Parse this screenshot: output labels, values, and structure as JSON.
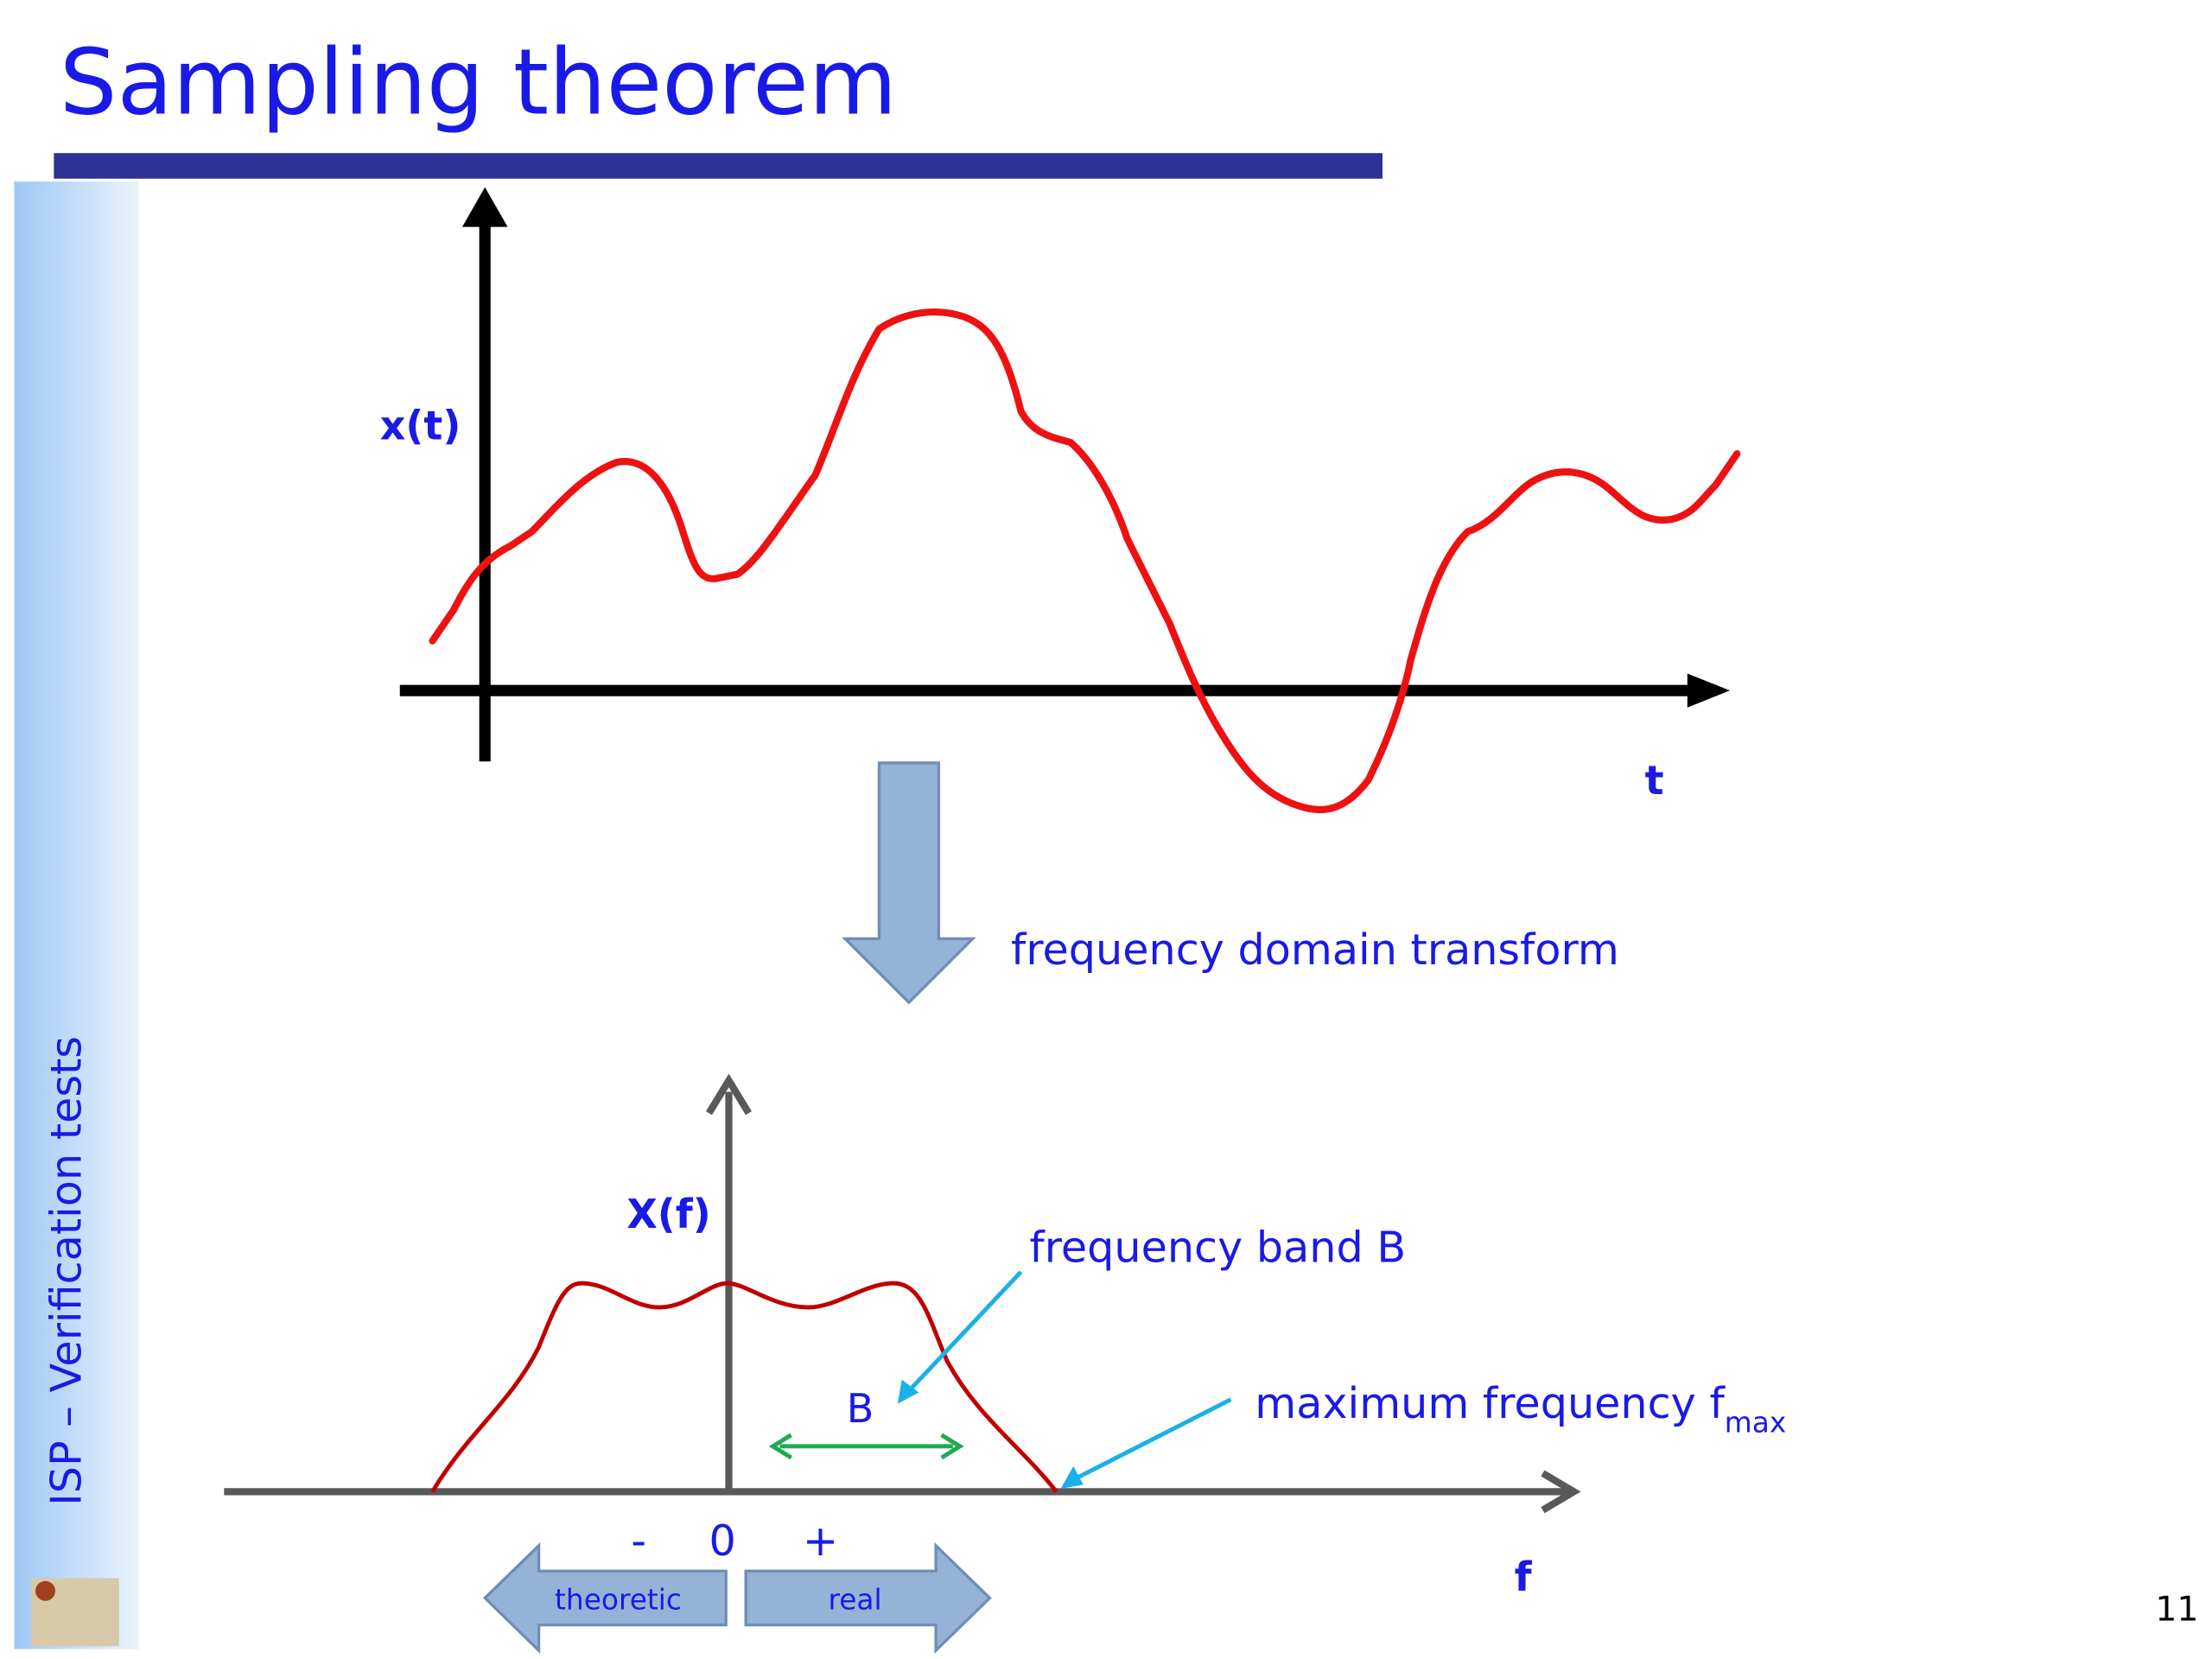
{
  "title": "Sampling theorem",
  "sidebar": "ISP – Verification tests",
  "time_plot": {
    "y_label": "x(t)",
    "x_label": "t"
  },
  "transform_label": "frequency domain transform",
  "freq_plot": {
    "y_label": "X(f)",
    "x_label": "f",
    "band_annotation": "frequency band B",
    "band_marker": "B",
    "max_annotation": {
      "text": "maximum frequency f",
      "subscript": "max"
    },
    "minus": "-",
    "zero": "0",
    "plus": "+",
    "left_arrow": "theoretic",
    "right_arrow": "real"
  },
  "page_number": "11"
}
